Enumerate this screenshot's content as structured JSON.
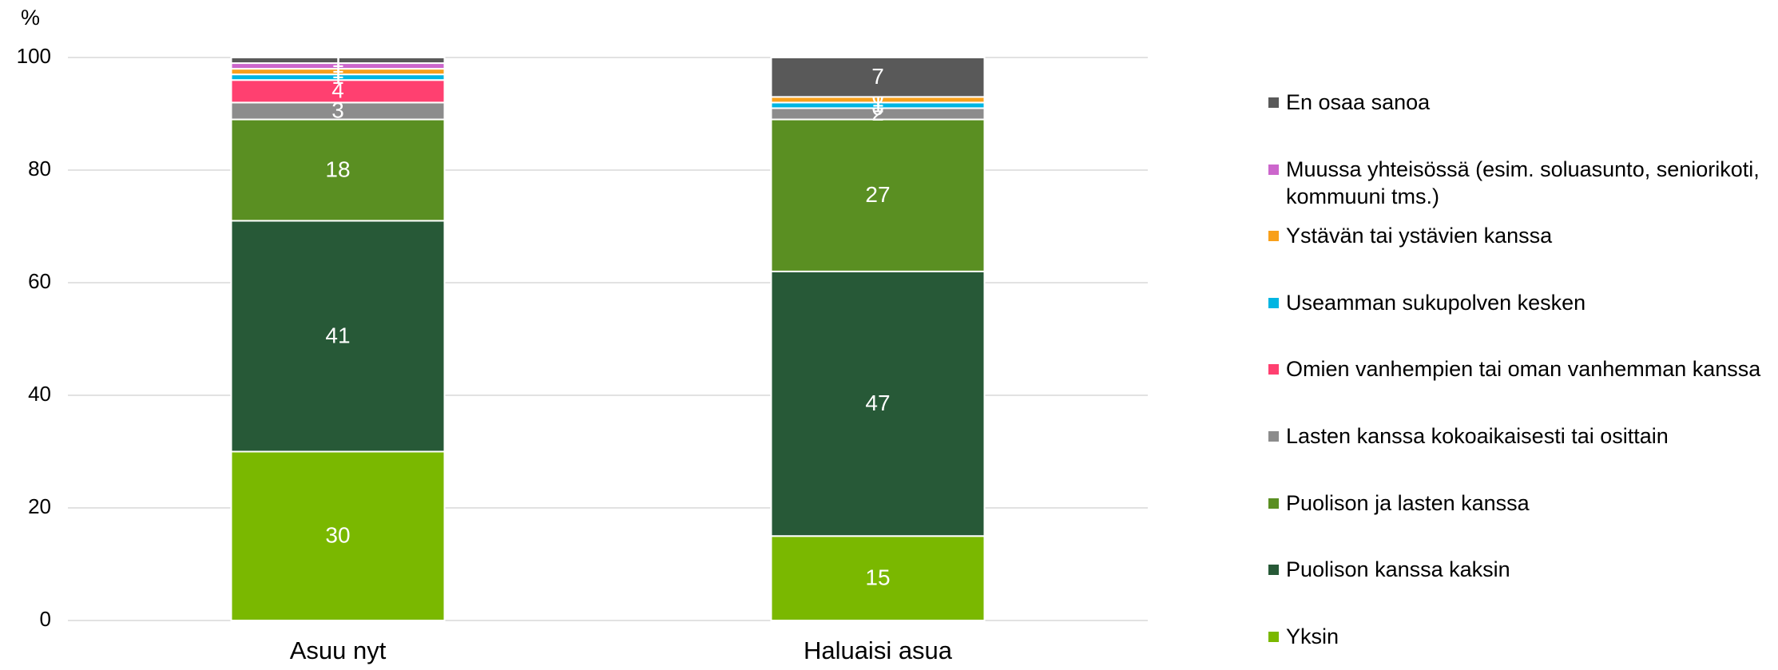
{
  "chart_data": {
    "type": "stacked_bar",
    "ylabel": "%",
    "categories": [
      "Asuu nyt",
      "Haluaisi asua"
    ],
    "series": [
      {
        "name": "Yksin",
        "color": "#7ab800",
        "values": [
          30,
          15
        ]
      },
      {
        "name": "Puolison kanssa kaksin",
        "color": "#275937",
        "values": [
          41,
          47
        ]
      },
      {
        "name": "Puolison ja lasten kanssa",
        "color": "#5a8f22",
        "values": [
          18,
          27
        ]
      },
      {
        "name": "Lasten kanssa kokoaikaisesti tai osittain",
        "color": "#8c8c8c",
        "values": [
          3,
          2
        ]
      },
      {
        "name": "Omien vanhempien tai oman vanhemman kanssa",
        "color": "#ff4070",
        "values": [
          4,
          0
        ]
      },
      {
        "name": "Useamman sukupolven kesken",
        "color": "#00b5e2",
        "values": [
          1,
          1
        ]
      },
      {
        "name": "Ystävän tai ystävien kanssa",
        "color": "#f8a01b",
        "values": [
          1,
          1
        ]
      },
      {
        "name": "Muussa yhteisössä (esim. soluasunto, seniorikoti, kommuuni tms.)",
        "color": "#cc66cc",
        "values": [
          1,
          0
        ]
      },
      {
        "name": "En osaa sanoa",
        "color": "#595959",
        "values": [
          1,
          7
        ]
      }
    ],
    "ylim": [
      0,
      100
    ],
    "yticks": [
      0,
      20,
      40,
      60,
      80,
      100
    ],
    "grid": true,
    "legend": "right"
  }
}
